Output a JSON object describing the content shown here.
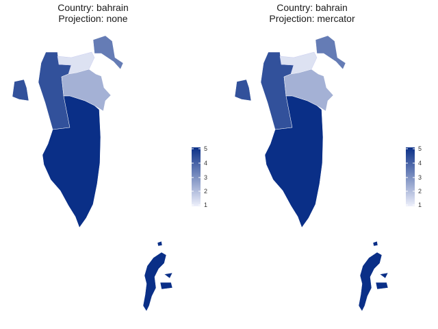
{
  "panels": [
    {
      "title_line1": "Country: bahrain",
      "title_line2": "Projection: none"
    },
    {
      "title_line1": "Country: bahrain",
      "title_line2": "Projection: mercator"
    }
  ],
  "legend": {
    "ticks": [
      "5",
      "4",
      "3",
      "2",
      "1"
    ],
    "min": 1,
    "max": 5,
    "color_low": "#eef0fb",
    "color_high": "#0a2f87"
  },
  "regions": [
    {
      "name": "northern_west",
      "value": 4.3
    },
    {
      "name": "capital",
      "value": 1.3
    },
    {
      "name": "muharraq",
      "value": 3.4
    },
    {
      "name": "central",
      "value": 2.3
    },
    {
      "name": "southern",
      "value": 5
    },
    {
      "name": "umm_nasan",
      "value": 4.3
    },
    {
      "name": "hawar",
      "value": 5
    }
  ]
}
